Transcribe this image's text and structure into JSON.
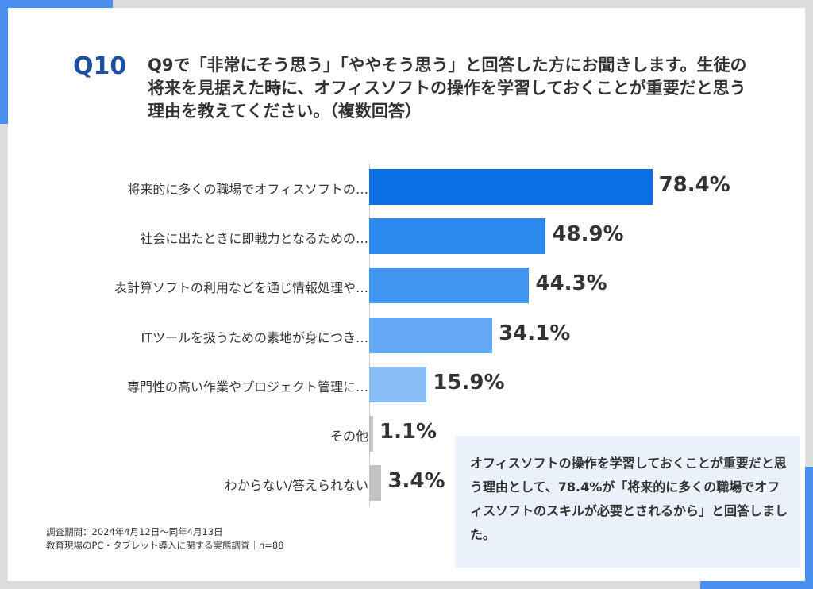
{
  "question": {
    "id": "Q10",
    "text": "Q9で「非常にそう思う」「ややそう思う」と回答した方にお聞きします。生徒の将来を見据えた時に、オフィスソフトの操作を学習しておくことが重要だと思う理由を教えてください。（複数回答）"
  },
  "chart_data": {
    "type": "bar",
    "orientation": "horizontal",
    "categories": [
      "将来的に多くの職場でオフィスソフトの…",
      "社会に出たときに即戦力となるための…",
      "表計算ソフトの利用などを通じ情報処理や…",
      "ITツールを扱うための素地が身につき…",
      "専門性の高い作業やプロジェクト管理に…",
      "その他",
      "わからない/答えられない"
    ],
    "values": [
      78.4,
      48.9,
      44.3,
      34.1,
      15.9,
      1.1,
      3.4
    ],
    "value_labels": [
      "78.4%",
      "48.9%",
      "44.3%",
      "34.1%",
      "15.9%",
      "1.1%",
      "3.4%"
    ],
    "colors": [
      "#0a6fe3",
      "#2c89ee",
      "#4095f0",
      "#64a9f5",
      "#89bdf8",
      "#c3c3c3",
      "#c3c3c3"
    ],
    "unit": "%",
    "xlim": [
      0,
      100
    ],
    "grid": false,
    "legend": "none"
  },
  "summary": {
    "text": "オフィスソフトの操作を学習しておくことが重要だと思う理由として、78.4%が「将来的に多くの職場でオフィスソフトのスキルが必要とされるから」と回答しました。"
  },
  "footnote": {
    "period": "調査期間：2024年4月12日～同年4月13日",
    "survey": "教育現場のPC・タブレット導入に関する実態調査｜n=88"
  }
}
